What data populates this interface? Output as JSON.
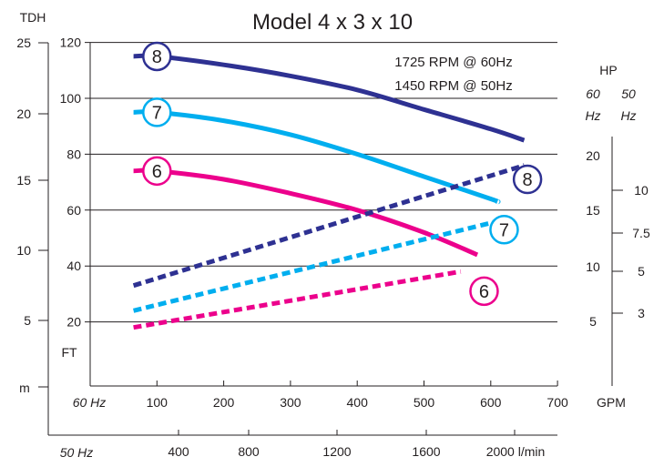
{
  "chart_data": {
    "type": "line",
    "title": "Model 4 x 3 x 10",
    "annotations": [
      "1725 RPM @ 60Hz",
      "1450 RPM @ 50Hz"
    ],
    "axes": {
      "head_ft": {
        "label": "TDH",
        "unit": "FT",
        "ticks": [
          20,
          40,
          60,
          80,
          100,
          120
        ],
        "range": [
          0,
          120
        ]
      },
      "head_m": {
        "unit": "m",
        "ticks": [
          5,
          10,
          15,
          20,
          25
        ]
      },
      "flow_gpm": {
        "label": "60 Hz",
        "unit": "GPM",
        "ticks": [
          100,
          200,
          300,
          400,
          500,
          600,
          700
        ],
        "range": [
          0,
          700
        ]
      },
      "flow_lpm": {
        "label": "50 Hz",
        "ticks": [
          "400",
          "800",
          "1200",
          "1600",
          "2000 l/min"
        ]
      },
      "power_60hz": {
        "title": "HP",
        "label_line1": "60",
        "label_line2": "Hz",
        "ticks": [
          5,
          10,
          15,
          20
        ]
      },
      "power_50hz": {
        "label_line1": "50",
        "label_line2": "Hz",
        "ticks": [
          "3",
          "5",
          "7.5",
          "10"
        ]
      }
    },
    "series": [
      {
        "name": "8",
        "kind": "head",
        "color": "#2e3192",
        "x": [
          65,
          100,
          200,
          300,
          400,
          500,
          600,
          650
        ],
        "y": [
          115,
          115,
          112,
          108,
          103,
          96,
          89,
          85
        ]
      },
      {
        "name": "7",
        "kind": "head",
        "color": "#00aeef",
        "x": [
          65,
          100,
          200,
          300,
          400,
          500,
          600,
          610
        ],
        "y": [
          95,
          95,
          92,
          87,
          80,
          72,
          64,
          63
        ]
      },
      {
        "name": "6",
        "kind": "head",
        "color": "#ec008c",
        "x": [
          65,
          100,
          200,
          300,
          400,
          500,
          580
        ],
        "y": [
          74,
          74,
          71,
          66,
          60,
          52,
          44
        ]
      },
      {
        "name": "8",
        "kind": "power",
        "color": "#2e3192",
        "x": [
          65,
          650
        ],
        "y": [
          33,
          76
        ]
      },
      {
        "name": "7",
        "kind": "power",
        "color": "#00aeef",
        "x": [
          65,
          610
        ],
        "y": [
          24,
          56
        ]
      },
      {
        "name": "6",
        "kind": "power",
        "color": "#ec008c",
        "x": [
          65,
          555
        ],
        "y": [
          18,
          38
        ]
      }
    ],
    "markers": [
      {
        "label": "8",
        "color": "#2e3192",
        "at_x": 100,
        "at_y": 115
      },
      {
        "label": "7",
        "color": "#00aeef",
        "at_x": 100,
        "at_y": 95
      },
      {
        "label": "6",
        "color": "#ec008c",
        "at_x": 100,
        "at_y": 74
      },
      {
        "label": "8",
        "color": "#2e3192",
        "at_x": 655,
        "at_y": 71
      },
      {
        "label": "7",
        "color": "#00aeef",
        "at_x": 620,
        "at_y": 53
      },
      {
        "label": "6",
        "color": "#ec008c",
        "at_x": 590,
        "at_y": 31
      }
    ],
    "legend": "none",
    "grid": true
  }
}
